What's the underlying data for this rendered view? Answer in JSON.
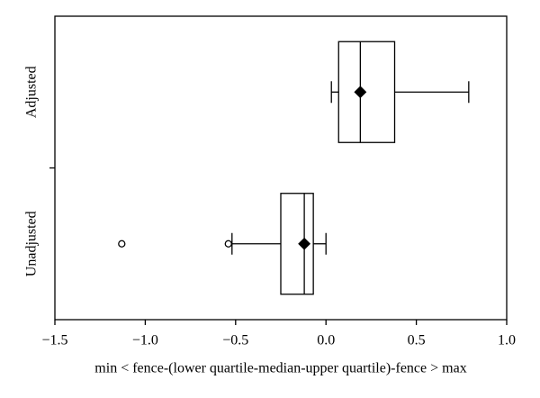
{
  "chart_data": {
    "type": "boxplot",
    "orientation": "horizontal",
    "xlabel": "min < fence-(lower quartile-median-upper quartile)-fence > max",
    "categories": [
      "Adjusted",
      "Unadjusted"
    ],
    "boxes": [
      {
        "whisker_low": 0.03,
        "q1": 0.07,
        "median": 0.19,
        "q3": 0.38,
        "whisker_high": 0.79,
        "mean": 0.19,
        "outliers": [],
        "median_color": "#c00000"
      },
      {
        "whisker_low": -0.52,
        "q1": -0.25,
        "median": -0.12,
        "q3": -0.07,
        "whisker_high": 0.0,
        "mean": -0.12,
        "outliers": [
          -0.54,
          -1.13
        ],
        "median_color": "#000000"
      }
    ],
    "xlim": [
      -1.5,
      1.0
    ],
    "xticks": [
      {
        "value": -1.5,
        "label": "−1.5"
      },
      {
        "value": -1.0,
        "label": "−1.0"
      },
      {
        "value": -0.5,
        "label": "−0.5"
      },
      {
        "value": 0.0,
        "label": "0.0"
      },
      0.5,
      {
        "value": 1.0,
        "label": "1.0"
      }
    ]
  }
}
